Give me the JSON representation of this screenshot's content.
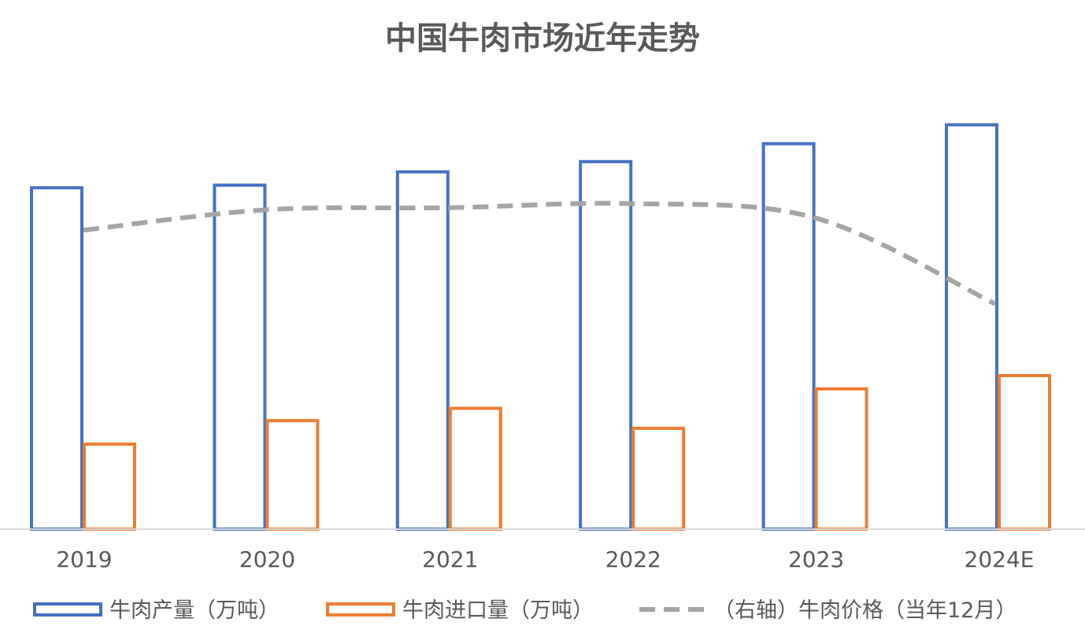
{
  "chart_data": {
    "type": "bar",
    "title": "中国牛肉市场近年走势",
    "categories": [
      "2019",
      "2020",
      "2021",
      "2022",
      "2023",
      "2024E"
    ],
    "xlabel": "",
    "ylabel": "",
    "ylim": [
      0,
      800
    ],
    "y2lim": [
      0,
      100
    ],
    "grid": false,
    "legend_position": "bottom",
    "series": [
      {
        "name": "牛肉产量（万吨）",
        "type": "bar",
        "axis": "left",
        "color": "#4472C4",
        "style": "outline",
        "values": [
          667,
          672,
          698,
          718,
          753,
          790
        ]
      },
      {
        "name": "牛肉进口量（万吨）",
        "type": "bar",
        "axis": "left",
        "color": "#ED7D31",
        "style": "outline",
        "values": [
          166,
          212,
          236,
          197,
          274,
          300
        ]
      },
      {
        "name": "（右轴）牛肉价格（当年12月）",
        "type": "line",
        "axis": "right",
        "color": "#A5A5A5",
        "style": "dashed",
        "values": [
          73,
          78,
          78.5,
          79.5,
          76,
          55
        ]
      }
    ]
  }
}
